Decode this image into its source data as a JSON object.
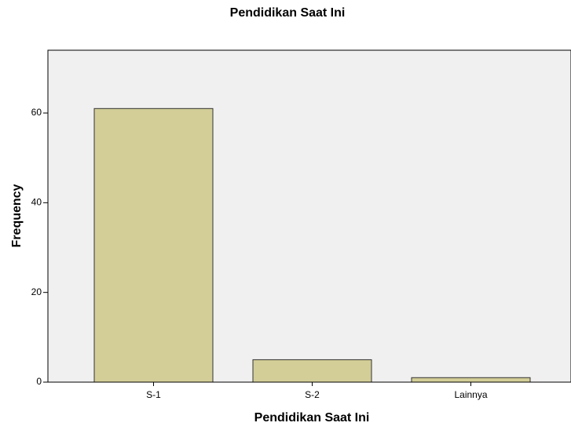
{
  "chart_data": {
    "type": "bar",
    "title": "Pendidikan Saat Ini",
    "x_label": "Pendidikan Saat Ini",
    "y_label": "Frequency",
    "categories": [
      "S-1",
      "S-2",
      "Lainnya"
    ],
    "values": [
      61,
      5,
      1
    ],
    "color": "#d3ce97",
    "ylim": [
      0,
      74
    ],
    "yticks": [
      0,
      20,
      40,
      60
    ],
    "grid": false
  }
}
